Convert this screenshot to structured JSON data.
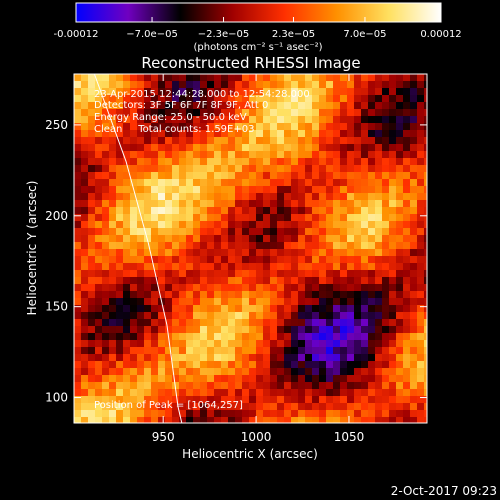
{
  "colorbar": {
    "tick_labels": [
      "-0.00012",
      "−7.0e−05",
      "−2.3e−05",
      "2.3e−05",
      "7.0e−05",
      "0.00012"
    ],
    "tick_values": [
      -0.00012,
      -7e-05,
      -2.3e-05,
      2.3e-05,
      7e-05,
      0.00012
    ],
    "range": [
      -0.00012,
      0.00012
    ],
    "units_label": "(photons cm⁻² s⁻¹ asec⁻²)",
    "colors": [
      "#0000ff",
      "#7000c0",
      "#000000",
      "#a00000",
      "#ff3000",
      "#ff9000",
      "#ffe060",
      "#ffffff"
    ]
  },
  "chart_data": {
    "type": "heatmap",
    "title": "Reconstructed RHESSI Image",
    "xlabel": "Heliocentric X (arcsec)",
    "ylabel": "Heliocentric Y (arcsec)",
    "xlim": [
      902,
      1092
    ],
    "ylim": [
      86,
      278
    ],
    "x_ticks": [
      950,
      1000,
      1050
    ],
    "y_ticks": [
      100,
      150,
      200,
      250
    ],
    "x_tick_labels": [
      "950",
      "1000",
      "1050"
    ],
    "y_tick_labels": [
      "100",
      "150",
      "200",
      "250"
    ],
    "limb_curve": [
      [
        913,
        278
      ],
      [
        930,
        230
      ],
      [
        942,
        185
      ],
      [
        952,
        140
      ],
      [
        958,
        95
      ],
      [
        960,
        86
      ]
    ],
    "peak": [
      1064,
      257
    ],
    "info_lines": [
      "23-Apr-2015 12:44:28.000 to 12:54:28.000",
      "Detectors: 3F 5F 6F 7F 8F 9F, Att 0",
      "Energy Range: 25.0 - 50.0 keV",
      "Clean     Total counts: 1.59E+03"
    ],
    "peak_label": "Position of Peak = [1064,257]"
  },
  "timestamp": "2-Oct-2017 09:23"
}
